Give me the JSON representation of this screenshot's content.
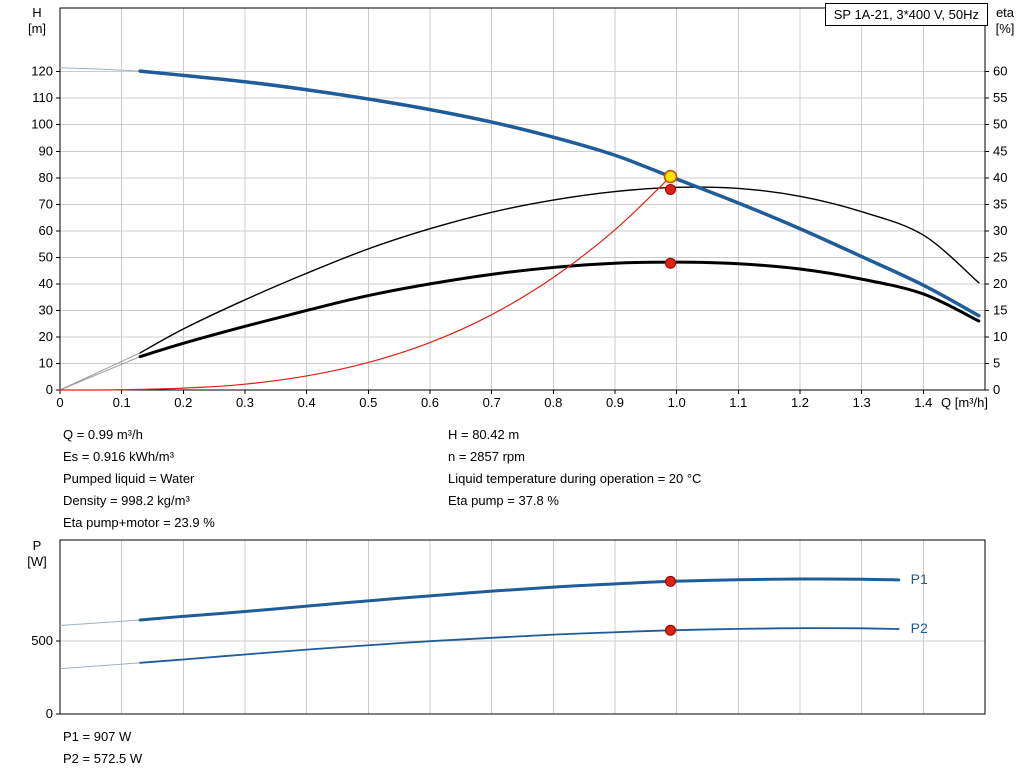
{
  "title_box": {
    "text": "SP 1A-21, 3*400 V, 50Hz"
  },
  "axes_labels": {
    "h_unit_top": "H",
    "h_unit_bottom": "[m]",
    "eta_unit_top": "eta",
    "eta_unit_bottom": "[%]",
    "q_label": "Q [m³/h]",
    "p_unit_top": "P",
    "p_unit_bottom": "[W]"
  },
  "duty_info": {
    "left": [
      "Q = 0.99 m³/h",
      "Es = 0.916 kWh/m³",
      "Pumped liquid = Water",
      "Density = 998.2 kg/m³",
      "Eta pump+motor = 23.9 %"
    ],
    "right": [
      "H = 80.42 m",
      "n = 2857 rpm",
      "Liquid temperature during operation = 20 °C",
      "Eta pump = 37.8 %"
    ]
  },
  "power_info": [
    "P1 = 907 W",
    "P2 = 572.5 W"
  ],
  "colors": {
    "curve_blue": "#1f5c99",
    "curve_black": "#000000",
    "curve_red": "#dd2211",
    "duty_yellow": "#ffe500",
    "duty_ring": "#d24400",
    "red_ring": "#990000",
    "grid": "#cccccc",
    "axis": "#000000"
  },
  "chart_data": [
    {
      "type": "line",
      "title": "SP 1A-21, 3*400 V, 50Hz",
      "xlabel": "Q [m³/h]",
      "ylabel_left": "H [m]",
      "ylabel_right": "eta [%]",
      "xlim": [
        0,
        1.5
      ],
      "ylim_left": [
        0,
        144
      ],
      "ylim_right": [
        0,
        72
      ],
      "x_ticks": [
        "0",
        "0.1",
        "0.2",
        "0.3",
        "0.4",
        "0.5",
        "0.6",
        "0.7",
        "0.8",
        "0.9",
        "1.0",
        "1.1",
        "1.2",
        "1.3",
        "1.4"
      ],
      "y_ticks_left": [
        "0",
        "10",
        "20",
        "30",
        "40",
        "50",
        "60",
        "70",
        "80",
        "90",
        "100",
        "110",
        "120"
      ],
      "y_ticks_right": [
        "0",
        "5",
        "10",
        "15",
        "20",
        "25",
        "30",
        "35",
        "40",
        "45",
        "50",
        "55",
        "60"
      ],
      "grid": true,
      "series": [
        {
          "id": "eta-pump-curve",
          "name": "Eta pump",
          "axis": "right",
          "color": "curve_black",
          "width": 1.4,
          "thin_until": 0.13,
          "thin_color": "#999999",
          "x": [
            0,
            0.13,
            0.2,
            0.3,
            0.4,
            0.5,
            0.6,
            0.7,
            0.8,
            0.9,
            1.0,
            1.1,
            1.2,
            1.3,
            1.4,
            1.49
          ],
          "y": [
            0,
            7,
            11.5,
            17,
            22,
            26.6,
            30.4,
            33.5,
            35.8,
            37.4,
            38.2,
            38,
            36.5,
            33.6,
            29.2,
            20.2
          ]
        },
        {
          "id": "eta-pump-motor-curve",
          "name": "Eta pump+motor",
          "axis": "right",
          "color": "curve_black",
          "width": 3,
          "thin_until": 0.13,
          "thin_color": "#999999",
          "x": [
            0,
            0.13,
            0.2,
            0.3,
            0.4,
            0.5,
            0.6,
            0.7,
            0.8,
            0.9,
            1.0,
            1.1,
            1.2,
            1.3,
            1.4,
            1.49
          ],
          "y": [
            0,
            6.3,
            8.8,
            12,
            15,
            17.8,
            20,
            21.8,
            23.1,
            23.9,
            24.1,
            23.8,
            22.8,
            20.9,
            18.1,
            13
          ]
        },
        {
          "id": "system-curve",
          "name": "Operating point curve",
          "axis": "left",
          "color": "curve_red",
          "width": 1.2,
          "x": [
            0,
            0.1,
            0.2,
            0.3,
            0.4,
            0.5,
            0.6,
            0.7,
            0.8,
            0.9,
            0.99
          ],
          "y": [
            0,
            0.1,
            0.7,
            2.2,
            5.3,
            10.4,
            17.9,
            28.4,
            42.4,
            60.4,
            80.42
          ]
        },
        {
          "id": "h-curve",
          "name": "H(Q)",
          "axis": "left",
          "color": "curve_blue",
          "width": 3.5,
          "thin_until": 0.13,
          "thin_color": "#9ab0cd",
          "x": [
            0,
            0.06,
            0.13,
            0.2,
            0.3,
            0.4,
            0.5,
            0.6,
            0.7,
            0.8,
            0.9,
            0.99,
            1.1,
            1.2,
            1.3,
            1.4,
            1.49
          ],
          "y": [
            121.5,
            121,
            120.2,
            118.6,
            116.2,
            113.2,
            109.7,
            105.7,
            101,
            95.3,
            88.5,
            80.42,
            70.5,
            60.8,
            50.3,
            39.5,
            28
          ]
        }
      ],
      "markers": [
        {
          "x": 0.99,
          "y": 37.8,
          "axis": "right",
          "style": "point",
          "name": "eta-pump-duty"
        },
        {
          "x": 0.99,
          "y": 23.9,
          "axis": "right",
          "style": "point",
          "name": "eta-pump-motor-duty"
        },
        {
          "x": 0.99,
          "y": 80.42,
          "axis": "left",
          "style": "duty",
          "name": "duty-point"
        }
      ]
    },
    {
      "type": "line",
      "title": "Power curves",
      "xlabel": "",
      "ylabel_left": "P [W]",
      "xlim": [
        0,
        1.5
      ],
      "ylim_left": [
        0,
        1190
      ],
      "x_ticks": [
        "0",
        "0.1",
        "0.2",
        "0.3",
        "0.4",
        "0.5",
        "0.6",
        "0.7",
        "0.8",
        "0.9",
        "1.0",
        "1.1",
        "1.2",
        "1.3",
        "1.4"
      ],
      "show_x_labels": false,
      "y_ticks_left": [
        "0",
        "500"
      ],
      "grid": true,
      "series": [
        {
          "id": "p1-curve",
          "name": "P1",
          "label": "P1",
          "axis": "left",
          "color": "curve_blue",
          "width": 3,
          "thin_until": 0.13,
          "thin_color": "#9ab0cd",
          "x": [
            0,
            0.13,
            0.2,
            0.3,
            0.4,
            0.5,
            0.6,
            0.7,
            0.8,
            0.9,
            0.99,
            1.1,
            1.2,
            1.3,
            1.36
          ],
          "y": [
            605,
            643,
            668,
            701,
            738,
            774,
            808,
            840,
            868,
            890,
            907,
            918,
            923,
            922,
            917
          ]
        },
        {
          "id": "p2-curve",
          "name": "P2",
          "label": "P2",
          "axis": "left",
          "color": "curve_blue",
          "width": 1.8,
          "thin_until": 0.13,
          "thin_color": "#9ab0cd",
          "x": [
            0,
            0.13,
            0.2,
            0.3,
            0.4,
            0.5,
            0.6,
            0.7,
            0.8,
            0.9,
            0.99,
            1.1,
            1.2,
            1.3,
            1.36
          ],
          "y": [
            310,
            350,
            373,
            407,
            440,
            470,
            498,
            521,
            543,
            559,
            572.5,
            582,
            587,
            586,
            581
          ]
        }
      ],
      "markers": [
        {
          "x": 0.99,
          "y": 907,
          "axis": "left",
          "style": "point",
          "name": "p1-duty"
        },
        {
          "x": 0.99,
          "y": 572.5,
          "axis": "left",
          "style": "point",
          "name": "p2-duty"
        }
      ]
    }
  ]
}
